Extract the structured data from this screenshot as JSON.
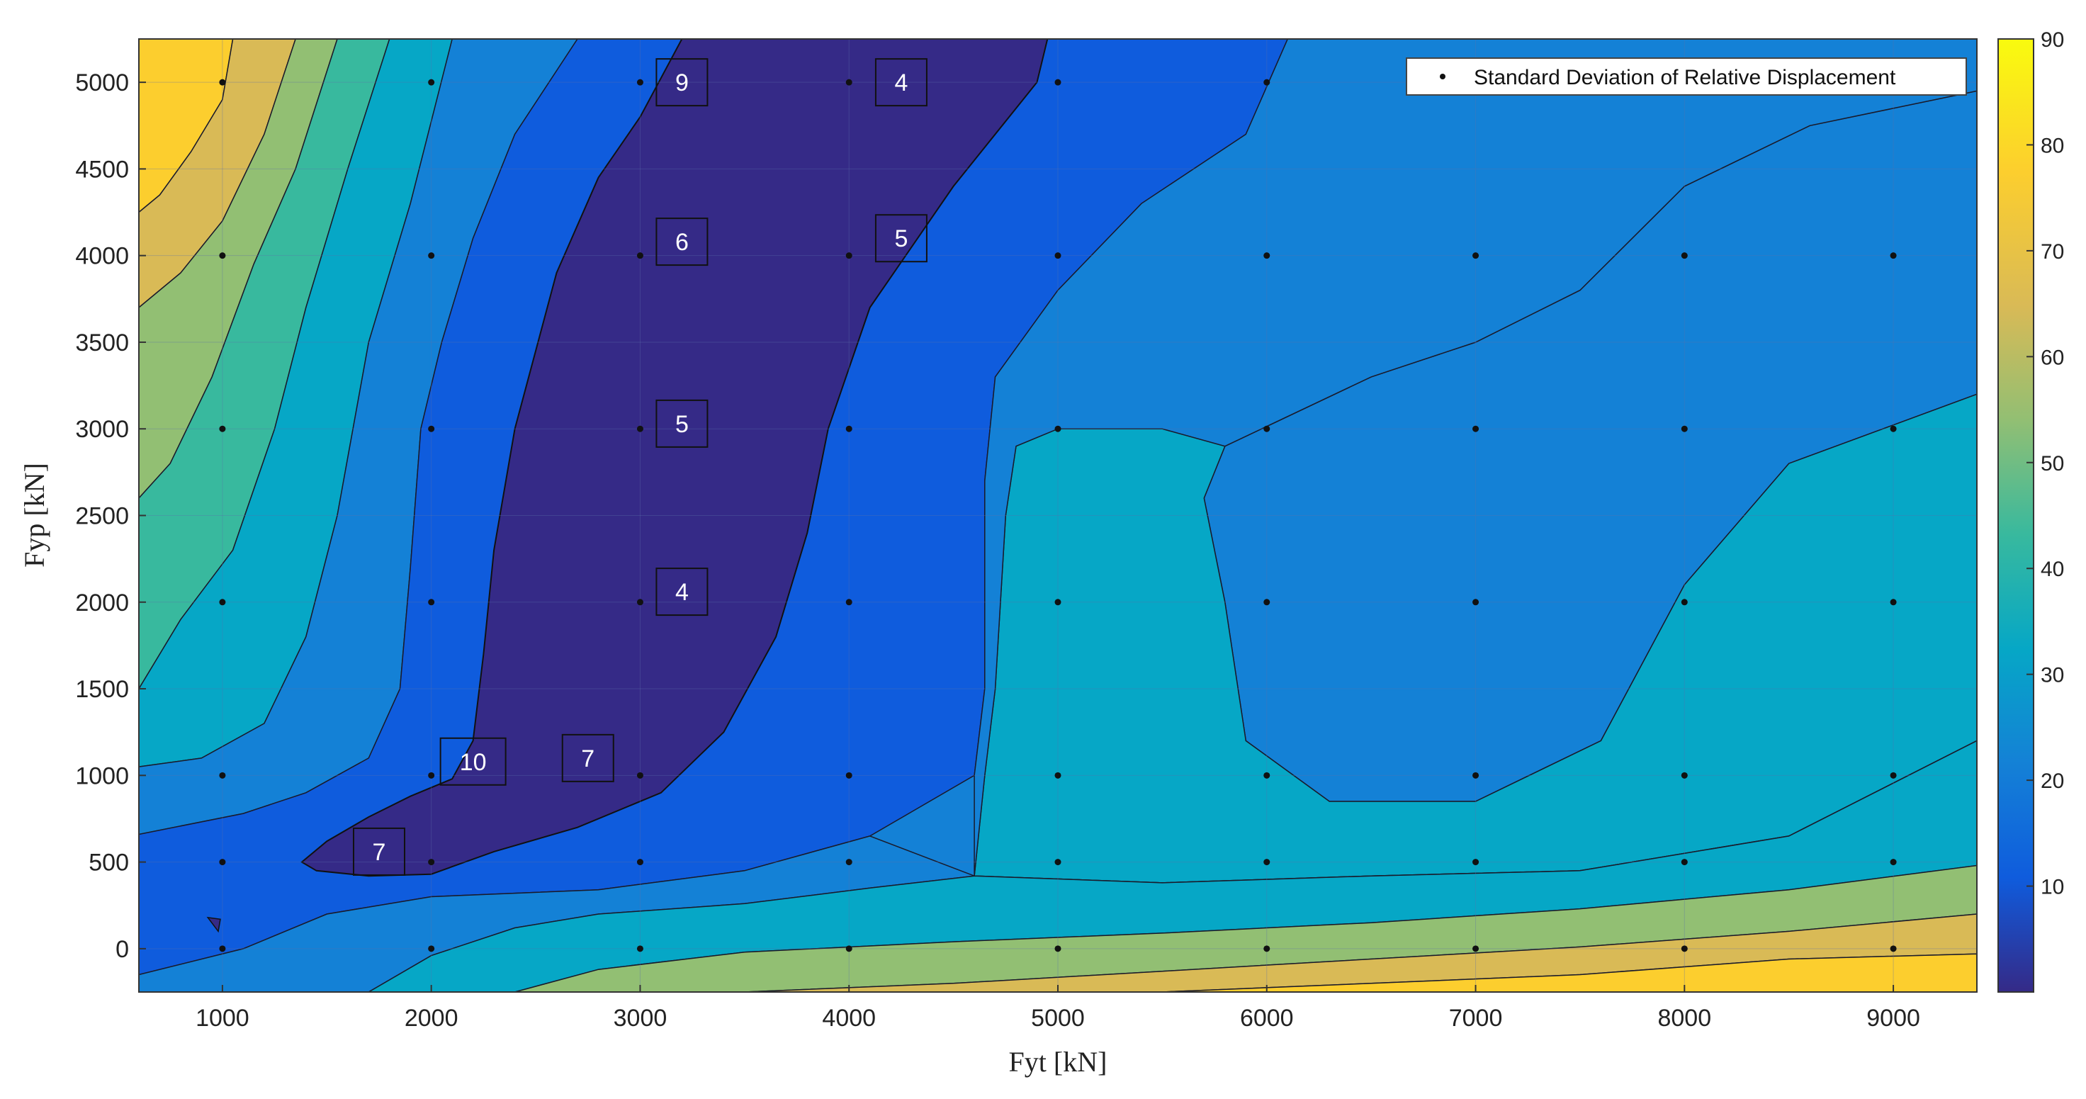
{
  "chart_data": {
    "type": "contour",
    "title": "",
    "xlabel": "Fyt [kN]",
    "ylabel": "Fyp [kN]",
    "xlim": [
      600,
      9400
    ],
    "ylim": [
      -250,
      5250
    ],
    "xticks": [
      1000,
      2000,
      3000,
      4000,
      5000,
      6000,
      7000,
      8000,
      9000
    ],
    "yticks": [
      0,
      500,
      1000,
      1500,
      2000,
      2500,
      3000,
      3500,
      4000,
      4500,
      5000
    ],
    "colorbar": {
      "min": 0,
      "max": 90,
      "ticks": [
        10,
        20,
        30,
        40,
        50,
        60,
        70,
        80,
        90
      ]
    },
    "grid": true,
    "legend": {
      "entries": [
        "Standard Deviation of Relative Displacement"
      ],
      "position": "top-right"
    },
    "sample_points": {
      "x": [
        1000,
        2000,
        3000,
        4000,
        5000,
        6000,
        7000,
        8000,
        9000
      ],
      "y": [
        0,
        500,
        1000,
        2000,
        3000,
        4000,
        5000
      ]
    },
    "annotations": [
      {
        "x": 3200,
        "y": 5000,
        "text": "9"
      },
      {
        "x": 4250,
        "y": 5000,
        "text": "4"
      },
      {
        "x": 3200,
        "y": 4080,
        "text": "6"
      },
      {
        "x": 4250,
        "y": 4100,
        "text": "5"
      },
      {
        "x": 3200,
        "y": 3030,
        "text": "5"
      },
      {
        "x": 3200,
        "y": 2060,
        "text": "4"
      },
      {
        "x": 2200,
        "y": 1080,
        "text": "10"
      },
      {
        "x": 2750,
        "y": 1100,
        "text": "7"
      },
      {
        "x": 1750,
        "y": 560,
        "text": "7"
      }
    ],
    "contour_levels": [
      {
        "level": 5,
        "fill": "#352a87",
        "boundary": [
          [
            1380,
            500
          ],
          [
            1500,
            620
          ],
          [
            1700,
            760
          ],
          [
            1900,
            880
          ],
          [
            2100,
            980
          ],
          [
            2200,
            1200
          ],
          [
            2250,
            1700
          ],
          [
            2300,
            2300
          ],
          [
            2400,
            3000
          ],
          [
            2600,
            3900
          ],
          [
            2800,
            4450
          ],
          [
            3000,
            4800
          ],
          [
            3200,
            5250
          ],
          [
            4950,
            5250
          ],
          [
            4900,
            5000
          ],
          [
            4500,
            4400
          ],
          [
            4100,
            3700
          ],
          [
            3900,
            3000
          ],
          [
            3800,
            2400
          ],
          [
            3650,
            1800
          ],
          [
            3400,
            1250
          ],
          [
            3100,
            900
          ],
          [
            2700,
            700
          ],
          [
            2300,
            560
          ],
          [
            2000,
            430
          ],
          [
            1700,
            420
          ],
          [
            1450,
            450
          ]
        ]
      }
    ]
  },
  "colors": {
    "c0": "#352a87",
    "c10": "#0f5cdd",
    "c20": "#1481d6",
    "c30": "#06a7c6",
    "c40": "#38b99e",
    "c50": "#92bf73",
    "c60": "#d9ba56",
    "c70": "#fcce2e",
    "c80": "#f9fb0e",
    "plot_background": "#1481d6",
    "grid": "#5b6fa8"
  }
}
